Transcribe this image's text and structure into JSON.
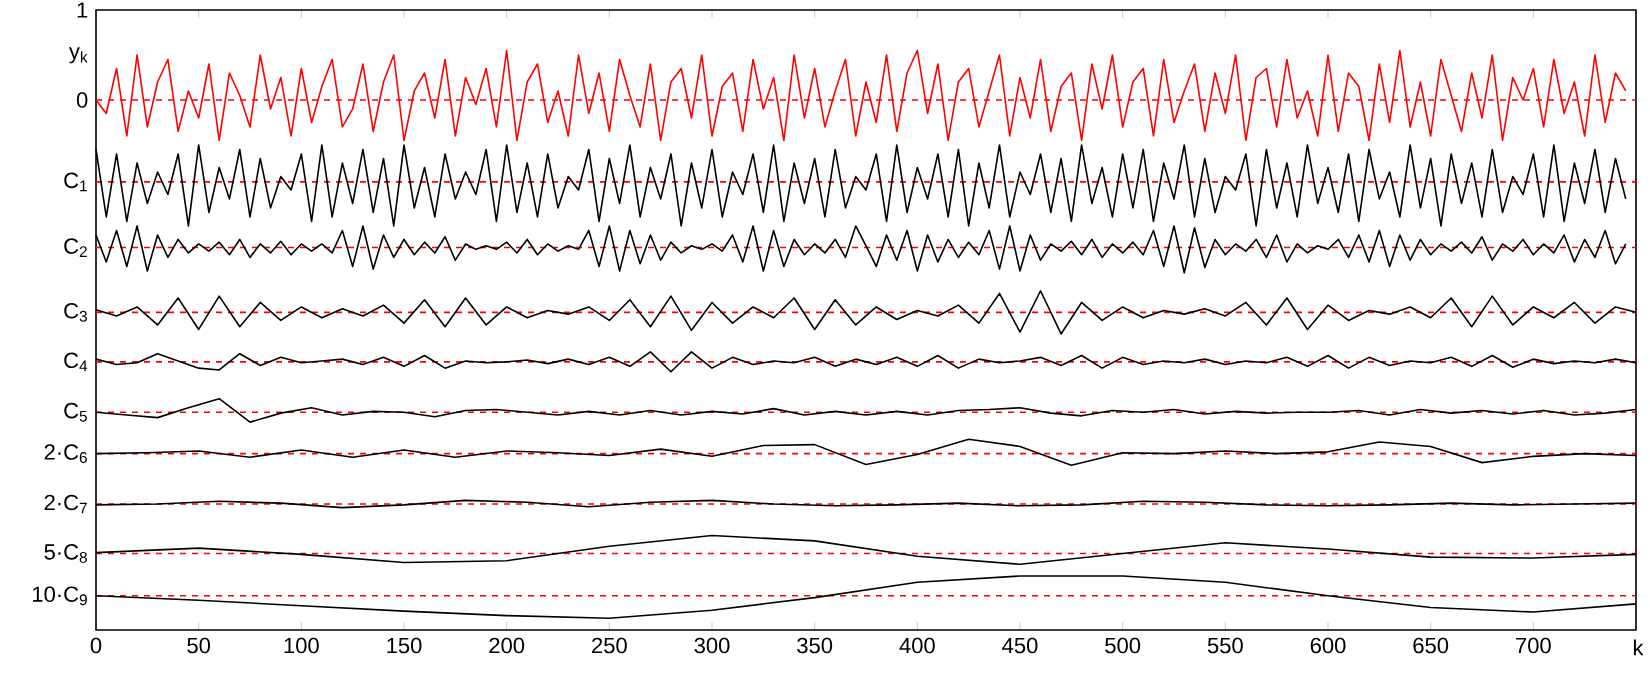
{
  "chart_data": {
    "type": "line",
    "xlabel": "k",
    "marker": "none",
    "xlim": [
      0,
      750
    ],
    "ylim": [
      -5.89,
      1
    ],
    "xticks": [
      0,
      50,
      100,
      150,
      200,
      250,
      300,
      350,
      400,
      450,
      500,
      550,
      600,
      650,
      700
    ],
    "ylabel": "y$_{k}$",
    "yticks": [
      1,
      0
    ],
    "ref_lines": [
      {
        "axis": "y",
        "value": 0,
        "color": "#ff0000",
        "line_style": "dashed"
      },
      {
        "axis": "y",
        "value": -0.91,
        "label": "C$_{1}$",
        "color": "#ff0000",
        "line_style": "dashed"
      },
      {
        "axis": "y",
        "value": -1.64,
        "label": "C$_{2}$",
        "color": "#ff0000",
        "line_style": "dashed"
      },
      {
        "axis": "y",
        "value": -2.36,
        "label": "C$_{3}$",
        "color": "#ff0000",
        "line_style": "dashed"
      },
      {
        "axis": "y",
        "value": -2.91,
        "label": "C$_{4}$",
        "color": "#ff0000",
        "line_style": "dashed"
      },
      {
        "axis": "y",
        "value": -3.47,
        "label": "C$_{5}$",
        "color": "#ff0000",
        "line_style": "dashed"
      },
      {
        "axis": "y",
        "value": -3.93,
        "label": "2·C$_{6}$",
        "color": "#ff0000",
        "line_style": "dashed"
      },
      {
        "axis": "y",
        "value": -4.49,
        "label": "2·C$_{7}$",
        "color": "#ff0000",
        "line_style": "dashed"
      },
      {
        "axis": "y",
        "value": -5.04,
        "label": "5·C$_{8}$",
        "color": "#ff0000",
        "line_style": "dashed"
      },
      {
        "axis": "y",
        "value": -5.51,
        "label": "10·C$_{9}$",
        "color": "#ff0000",
        "line_style": "dashed"
      }
    ],
    "x": [
      0,
      5,
      10,
      15,
      20,
      25,
      30,
      35,
      40,
      45,
      50,
      55,
      60,
      65,
      70,
      75,
      80,
      85,
      90,
      95,
      100,
      105,
      110,
      115,
      120,
      125,
      130,
      135,
      140,
      145,
      150,
      155,
      160,
      165,
      170,
      175,
      180,
      185,
      190,
      195,
      200,
      205,
      210,
      215,
      220,
      225,
      230,
      235,
      240,
      245,
      250,
      255,
      260,
      265,
      270,
      275,
      280,
      285,
      290,
      295,
      300,
      305,
      310,
      315,
      320,
      325,
      330,
      335,
      340,
      345,
      350,
      355,
      360,
      365,
      370,
      375,
      380,
      385,
      390,
      395,
      400,
      405,
      410,
      415,
      420,
      425,
      430,
      435,
      440,
      445,
      450,
      455,
      460,
      465,
      470,
      475,
      480,
      485,
      490,
      495,
      500,
      505,
      510,
      515,
      520,
      525,
      530,
      535,
      540,
      545,
      550,
      555,
      560,
      565,
      570,
      575,
      580,
      585,
      590,
      595,
      600,
      605,
      610,
      615,
      620,
      625,
      630,
      635,
      640,
      645,
      650,
      655,
      660,
      665,
      670,
      675,
      680,
      685,
      690,
      695,
      700,
      705,
      710,
      715,
      720,
      725,
      730,
      735,
      740,
      745
    ],
    "series": [
      {
        "color": "#ff0000",
        "values": [
          0.0,
          -0.15,
          0.35,
          -0.4,
          0.5,
          -0.3,
          0.2,
          0.45,
          -0.35,
          0.1,
          -0.2,
          0.4,
          -0.45,
          0.3,
          0.05,
          -0.3,
          0.5,
          -0.1,
          0.25,
          -0.4,
          0.35,
          -0.25,
          0.15,
          0.45,
          -0.3,
          -0.1,
          0.4,
          -0.35,
          0.2,
          0.5,
          -0.45,
          0.1,
          0.3,
          -0.2,
          0.45,
          -0.4,
          0.25,
          -0.05,
          0.35,
          -0.3,
          0.55,
          -0.45,
          0.2,
          0.4,
          -0.25,
          0.1,
          -0.4,
          0.5,
          -0.15,
          0.3,
          -0.35,
          0.45,
          0.05,
          -0.3,
          0.4,
          -0.45,
          0.2,
          0.35,
          -0.2,
          0.5,
          -0.4,
          0.15,
          0.3,
          -0.35,
          0.45,
          -0.1,
          0.25,
          -0.45,
          0.5,
          -0.2,
          0.35,
          -0.3,
          0.1,
          0.45,
          -0.4,
          0.2,
          -0.25,
          0.5,
          -0.35,
          0.3,
          0.55,
          -0.15,
          0.4,
          -0.45,
          0.2,
          0.35,
          -0.3,
          0.1,
          0.5,
          -0.4,
          0.25,
          -0.2,
          0.45,
          -0.35,
          0.15,
          0.3,
          -0.45,
          0.4,
          -0.1,
          0.5,
          -0.3,
          0.2,
          0.35,
          -0.4,
          0.45,
          -0.25,
          0.1,
          0.4,
          -0.35,
          0.3,
          -0.15,
          0.5,
          -0.45,
          0.25,
          0.35,
          -0.3,
          0.45,
          -0.2,
          0.1,
          -0.4,
          0.5,
          -0.35,
          0.3,
          0.15,
          -0.45,
          0.4,
          -0.25,
          0.55,
          -0.3,
          0.2,
          -0.4,
          0.45,
          0.05,
          -0.35,
          0.3,
          -0.2,
          0.5,
          -0.45,
          0.25,
          0.0,
          0.35,
          -0.3,
          0.45,
          -0.15,
          0.2,
          -0.4,
          0.5,
          -0.25,
          0.3,
          0.1
        ]
      },
      {
        "color": "#000000",
        "values": [
          -0.55,
          -1.3,
          -0.6,
          -1.35,
          -0.7,
          -1.15,
          -0.8,
          -1.05,
          -0.6,
          -1.4,
          -0.5,
          -1.25,
          -0.75,
          -1.1,
          -0.55,
          -1.3,
          -0.65,
          -1.2,
          -0.85,
          -1.0,
          -0.6,
          -1.35,
          -0.5,
          -1.3,
          -0.7,
          -1.15,
          -0.55,
          -1.25,
          -0.65,
          -1.4,
          -0.5,
          -1.2,
          -0.75,
          -1.3,
          -0.6,
          -1.1,
          -0.8,
          -1.05,
          -0.55,
          -1.35,
          -0.5,
          -1.25,
          -0.7,
          -1.3,
          -0.6,
          -1.2,
          -0.85,
          -1.0,
          -0.55,
          -1.35,
          -0.65,
          -1.15,
          -0.5,
          -1.3,
          -0.75,
          -1.1,
          -0.6,
          -1.4,
          -0.7,
          -1.2,
          -0.55,
          -1.3,
          -0.8,
          -1.05,
          -0.6,
          -1.25,
          -0.5,
          -1.35,
          -0.7,
          -1.15,
          -0.65,
          -1.3,
          -0.55,
          -1.2,
          -0.85,
          -1.0,
          -0.6,
          -1.35,
          -0.5,
          -1.25,
          -0.75,
          -1.1,
          -0.6,
          -1.3,
          -0.55,
          -1.4,
          -0.7,
          -1.2,
          -0.5,
          -1.3,
          -0.8,
          -1.05,
          -0.6,
          -1.25,
          -0.65,
          -1.35,
          -0.5,
          -1.15,
          -0.75,
          -1.3,
          -0.6,
          -1.2,
          -0.55,
          -1.35,
          -0.7,
          -1.1,
          -0.5,
          -1.3,
          -0.65,
          -1.25,
          -0.85,
          -1.0,
          -0.6,
          -1.4,
          -0.55,
          -1.2,
          -0.7,
          -1.3,
          -0.5,
          -1.15,
          -0.75,
          -1.25,
          -0.6,
          -1.35,
          -0.55,
          -1.1,
          -0.8,
          -1.3,
          -0.5,
          -1.2,
          -0.65,
          -1.4,
          -0.6,
          -1.15,
          -0.7,
          -1.3,
          -0.55,
          -1.25,
          -0.85,
          -1.05,
          -0.6,
          -1.3,
          -0.5,
          -1.35,
          -0.7,
          -1.15,
          -0.55,
          -1.25,
          -0.65,
          -1.1
        ]
      },
      {
        "color": "#000000",
        "values": [
          -1.5,
          -1.8,
          -1.45,
          -1.85,
          -1.4,
          -1.9,
          -1.5,
          -1.75,
          -1.55,
          -1.7,
          -1.6,
          -1.68,
          -1.58,
          -1.72,
          -1.55,
          -1.75,
          -1.6,
          -1.7,
          -1.57,
          -1.72,
          -1.6,
          -1.68,
          -1.6,
          -1.7,
          -1.45,
          -1.85,
          -1.4,
          -1.88,
          -1.5,
          -1.75,
          -1.55,
          -1.72,
          -1.58,
          -1.7,
          -1.52,
          -1.78,
          -1.6,
          -1.66,
          -1.62,
          -1.66,
          -1.58,
          -1.7,
          -1.55,
          -1.72,
          -1.6,
          -1.68,
          -1.62,
          -1.66,
          -1.45,
          -1.85,
          -1.4,
          -1.9,
          -1.45,
          -1.82,
          -1.5,
          -1.78,
          -1.58,
          -1.7,
          -1.62,
          -1.66,
          -1.6,
          -1.68,
          -1.5,
          -1.8,
          -1.4,
          -1.9,
          -1.45,
          -1.85,
          -1.55,
          -1.72,
          -1.6,
          -1.7,
          -1.55,
          -1.75,
          -1.4,
          -1.62,
          -1.85,
          -1.5,
          -1.78,
          -1.45,
          -1.9,
          -1.5,
          -1.8,
          -1.55,
          -1.75,
          -1.58,
          -1.72,
          -1.45,
          -1.88,
          -1.4,
          -1.9,
          -1.5,
          -1.78,
          -1.6,
          -1.68,
          -1.57,
          -1.72,
          -1.55,
          -1.75,
          -1.6,
          -1.7,
          -1.58,
          -1.72,
          -1.45,
          -1.85,
          -1.4,
          -1.92,
          -1.42,
          -1.86,
          -1.55,
          -1.72,
          -1.6,
          -1.68,
          -1.55,
          -1.75,
          -1.5,
          -1.8,
          -1.6,
          -1.7,
          -1.62,
          -1.66,
          -1.55,
          -1.75,
          -1.5,
          -1.8,
          -1.45,
          -1.85,
          -1.5,
          -1.78,
          -1.55,
          -1.72,
          -1.6,
          -1.68,
          -1.58,
          -1.7,
          -1.52,
          -1.78,
          -1.6,
          -1.68,
          -1.55,
          -1.72,
          -1.6,
          -1.7,
          -1.5,
          -1.8,
          -1.55,
          -1.75,
          -1.45,
          -1.82,
          -1.6
        ]
      },
      {
        "color": "#000000",
        "x": [
          0,
          10,
          20,
          30,
          40,
          50,
          60,
          70,
          80,
          90,
          100,
          110,
          120,
          130,
          140,
          150,
          160,
          170,
          180,
          190,
          200,
          210,
          220,
          230,
          240,
          250,
          260,
          270,
          280,
          290,
          300,
          310,
          320,
          330,
          340,
          350,
          360,
          370,
          380,
          390,
          400,
          410,
          420,
          430,
          440,
          450,
          460,
          470,
          480,
          490,
          500,
          510,
          520,
          530,
          540,
          550,
          560,
          570,
          580,
          590,
          600,
          610,
          620,
          630,
          640,
          650,
          660,
          670,
          680,
          690,
          700,
          710,
          720,
          730,
          740,
          750
        ],
        "values": [
          -2.33,
          -2.4,
          -2.3,
          -2.5,
          -2.2,
          -2.55,
          -2.18,
          -2.52,
          -2.25,
          -2.45,
          -2.3,
          -2.42,
          -2.32,
          -2.4,
          -2.28,
          -2.48,
          -2.22,
          -2.52,
          -2.2,
          -2.5,
          -2.3,
          -2.42,
          -2.34,
          -2.38,
          -2.3,
          -2.45,
          -2.22,
          -2.52,
          -2.18,
          -2.56,
          -2.25,
          -2.48,
          -2.3,
          -2.42,
          -2.2,
          -2.55,
          -2.22,
          -2.5,
          -2.3,
          -2.44,
          -2.34,
          -2.4,
          -2.28,
          -2.48,
          -2.15,
          -2.58,
          -2.12,
          -2.6,
          -2.25,
          -2.45,
          -2.3,
          -2.42,
          -2.34,
          -2.38,
          -2.32,
          -2.4,
          -2.25,
          -2.5,
          -2.2,
          -2.55,
          -2.28,
          -2.45,
          -2.34,
          -2.38,
          -2.3,
          -2.42,
          -2.2,
          -2.52,
          -2.18,
          -2.5,
          -2.3,
          -2.42,
          -2.25,
          -2.48,
          -2.3,
          -2.36
        ]
      },
      {
        "color": "#000000",
        "x": [
          0,
          10,
          20,
          30,
          40,
          50,
          60,
          70,
          80,
          90,
          100,
          110,
          120,
          130,
          140,
          150,
          160,
          170,
          180,
          190,
          200,
          210,
          220,
          230,
          240,
          250,
          260,
          270,
          280,
          290,
          300,
          310,
          320,
          330,
          340,
          350,
          360,
          370,
          380,
          390,
          400,
          410,
          420,
          430,
          440,
          450,
          460,
          470,
          480,
          490,
          500,
          510,
          520,
          530,
          540,
          550,
          560,
          570,
          580,
          590,
          600,
          610,
          620,
          630,
          640,
          650,
          660,
          670,
          680,
          690,
          700,
          710,
          720,
          730,
          740,
          750
        ],
        "values": [
          -2.88,
          -2.94,
          -2.92,
          -2.82,
          -2.9,
          -2.98,
          -3.0,
          -2.82,
          -2.95,
          -2.86,
          -2.92,
          -2.9,
          -2.88,
          -2.94,
          -2.86,
          -2.96,
          -2.84,
          -2.98,
          -2.9,
          -2.92,
          -2.91,
          -2.89,
          -2.93,
          -2.88,
          -2.94,
          -2.86,
          -2.96,
          -2.8,
          -3.02,
          -2.8,
          -2.98,
          -2.86,
          -2.94,
          -2.9,
          -2.92,
          -2.86,
          -2.96,
          -2.88,
          -2.94,
          -2.86,
          -2.96,
          -2.84,
          -2.98,
          -2.88,
          -2.92,
          -2.9,
          -2.86,
          -2.95,
          -2.84,
          -2.98,
          -2.86,
          -2.94,
          -2.9,
          -2.92,
          -2.88,
          -2.94,
          -2.9,
          -2.92,
          -2.86,
          -2.96,
          -2.84,
          -2.98,
          -2.86,
          -2.95,
          -2.9,
          -2.92,
          -2.86,
          -2.96,
          -2.84,
          -2.97,
          -2.88,
          -2.93,
          -2.9,
          -2.92,
          -2.88,
          -2.92
        ]
      },
      {
        "color": "#000000",
        "x": [
          0,
          15,
          30,
          45,
          60,
          75,
          90,
          105,
          120,
          135,
          150,
          165,
          180,
          195,
          210,
          225,
          240,
          255,
          270,
          285,
          300,
          315,
          330,
          345,
          360,
          375,
          390,
          405,
          420,
          435,
          450,
          465,
          480,
          495,
          510,
          525,
          540,
          555,
          570,
          585,
          600,
          615,
          630,
          645,
          660,
          675,
          690,
          705,
          720,
          735,
          750
        ],
        "values": [
          -3.47,
          -3.5,
          -3.53,
          -3.42,
          -3.32,
          -3.58,
          -3.48,
          -3.42,
          -3.5,
          -3.46,
          -3.47,
          -3.52,
          -3.45,
          -3.44,
          -3.47,
          -3.5,
          -3.46,
          -3.5,
          -3.45,
          -3.5,
          -3.46,
          -3.49,
          -3.43,
          -3.5,
          -3.46,
          -3.5,
          -3.46,
          -3.5,
          -3.45,
          -3.44,
          -3.42,
          -3.48,
          -3.51,
          -3.45,
          -3.47,
          -3.44,
          -3.49,
          -3.46,
          -3.48,
          -3.47,
          -3.47,
          -3.45,
          -3.5,
          -3.44,
          -3.48,
          -3.45,
          -3.49,
          -3.45,
          -3.5,
          -3.48,
          -3.44
        ]
      },
      {
        "color": "#000000",
        "x": [
          0,
          25,
          50,
          75,
          100,
          125,
          150,
          175,
          200,
          225,
          250,
          275,
          300,
          325,
          350,
          375,
          400,
          425,
          450,
          475,
          500,
          525,
          550,
          575,
          600,
          625,
          650,
          675,
          700,
          725,
          750
        ],
        "values": [
          -3.93,
          -3.92,
          -3.9,
          -3.97,
          -3.89,
          -3.97,
          -3.89,
          -3.97,
          -3.9,
          -3.92,
          -3.95,
          -3.88,
          -3.96,
          -3.84,
          -3.83,
          -4.05,
          -3.94,
          -3.77,
          -3.85,
          -4.06,
          -3.92,
          -3.93,
          -3.9,
          -3.93,
          -3.91,
          -3.8,
          -3.85,
          -4.03,
          -3.96,
          -3.93,
          -3.95
        ]
      },
      {
        "color": "#000000",
        "x": [
          0,
          30,
          60,
          90,
          120,
          150,
          180,
          210,
          240,
          270,
          300,
          330,
          360,
          390,
          420,
          450,
          480,
          510,
          540,
          570,
          600,
          630,
          660,
          690,
          720,
          750
        ],
        "values": [
          -4.5,
          -4.49,
          -4.46,
          -4.48,
          -4.53,
          -4.5,
          -4.45,
          -4.47,
          -4.52,
          -4.47,
          -4.45,
          -4.49,
          -4.51,
          -4.5,
          -4.48,
          -4.51,
          -4.5,
          -4.46,
          -4.47,
          -4.5,
          -4.51,
          -4.5,
          -4.48,
          -4.5,
          -4.49,
          -4.48
        ]
      },
      {
        "color": "#000000",
        "x": [
          0,
          50,
          100,
          150,
          200,
          250,
          300,
          350,
          400,
          450,
          500,
          550,
          600,
          650,
          700,
          750
        ],
        "values": [
          -5.03,
          -4.98,
          -5.05,
          -5.14,
          -5.12,
          -4.96,
          -4.84,
          -4.9,
          -5.07,
          -5.16,
          -5.04,
          -4.92,
          -4.99,
          -5.08,
          -5.09,
          -5.05
        ]
      },
      {
        "color": "#000000",
        "x": [
          0,
          50,
          100,
          150,
          200,
          250,
          300,
          350,
          400,
          450,
          500,
          550,
          600,
          650,
          700,
          750
        ],
        "values": [
          -5.51,
          -5.56,
          -5.62,
          -5.68,
          -5.73,
          -5.76,
          -5.67,
          -5.53,
          -5.36,
          -5.29,
          -5.29,
          -5.36,
          -5.51,
          -5.64,
          -5.69,
          -5.6
        ]
      }
    ]
  }
}
